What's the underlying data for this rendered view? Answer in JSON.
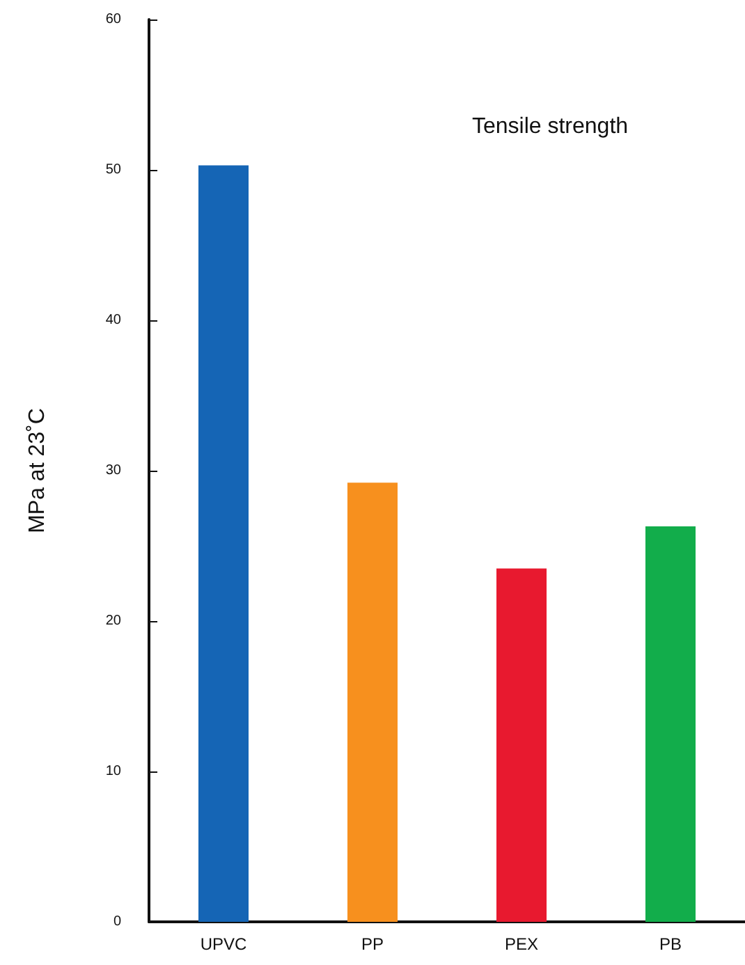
{
  "chart_data": {
    "type": "bar",
    "title": "Tensile strength",
    "ylabel": "MPa at 23˚C",
    "categories": [
      "UPVC",
      "PP",
      "PEX",
      "PB"
    ],
    "values": [
      50.3,
      29.2,
      23.5,
      26.3
    ],
    "colors": [
      "#1565b5",
      "#f7901e",
      "#e8192f",
      "#12ad4b"
    ],
    "ylim": [
      0,
      60
    ],
    "yticks": [
      0,
      10,
      20,
      30,
      40,
      50,
      60
    ]
  }
}
